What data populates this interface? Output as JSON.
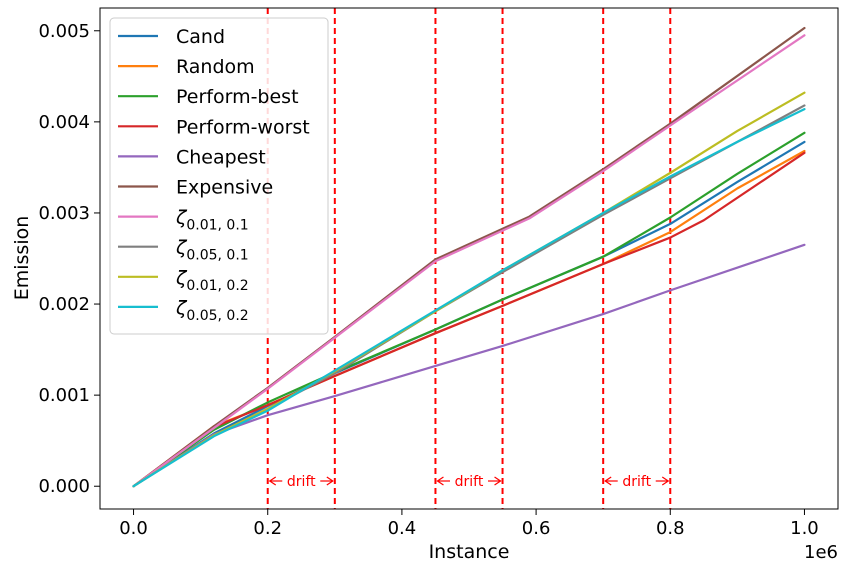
{
  "chart_data": {
    "type": "line",
    "title": "",
    "xlabel": "Instance",
    "ylabel": "Emission",
    "x_offset_label": "1e6",
    "xlim": [
      -0.05,
      1.05
    ],
    "ylim": [
      -0.00025,
      0.00525
    ],
    "xticks": [
      0.0,
      0.2,
      0.4,
      0.6,
      0.8,
      1.0
    ],
    "xtick_labels": [
      "0.0",
      "0.2",
      "0.4",
      "0.6",
      "0.8",
      "1.0"
    ],
    "yticks": [
      0.0,
      0.001,
      0.002,
      0.003,
      0.004,
      0.005
    ],
    "ytick_labels": [
      "0.000",
      "0.001",
      "0.002",
      "0.003",
      "0.004",
      "0.005"
    ],
    "grid": false,
    "legend_position": "top-left",
    "drift_lines": [
      0.2,
      0.3,
      0.45,
      0.55,
      0.7,
      0.8
    ],
    "drift_regions": [
      {
        "start": 0.2,
        "end": 0.3,
        "label": "drift"
      },
      {
        "start": 0.45,
        "end": 0.55,
        "label": "drift"
      },
      {
        "start": 0.7,
        "end": 0.8,
        "label": "drift"
      }
    ],
    "drift_color": "#ff0000",
    "series": [
      {
        "name": "Cand",
        "base": "Cand",
        "sub": "",
        "color": "#1f77b4",
        "x": [
          0,
          0.12,
          0.2,
          0.3,
          0.45,
          0.55,
          0.7,
          0.8,
          0.9,
          1.0
        ],
        "y": [
          0,
          0.00058,
          0.00088,
          0.00124,
          0.00172,
          0.00205,
          0.00252,
          0.00288,
          0.00334,
          0.00378
        ]
      },
      {
        "name": "Random",
        "base": "Random",
        "sub": "",
        "color": "#ff7f0e",
        "x": [
          0,
          0.12,
          0.2,
          0.3,
          0.45,
          0.55,
          0.7,
          0.8,
          0.9,
          1.0
        ],
        "y": [
          0,
          0.00066,
          0.00089,
          0.00121,
          0.00168,
          0.00198,
          0.00244,
          0.00279,
          0.00327,
          0.00368
        ]
      },
      {
        "name": "Perform-best",
        "base": "Perform-best",
        "sub": "",
        "color": "#2ca02c",
        "x": [
          0,
          0.12,
          0.2,
          0.3,
          0.45,
          0.55,
          0.7,
          0.8,
          0.9,
          1.0
        ],
        "y": [
          0,
          0.00062,
          0.00092,
          0.00125,
          0.00172,
          0.00205,
          0.00252,
          0.00295,
          0.00343,
          0.00388
        ]
      },
      {
        "name": "Perform-worst",
        "base": "Perform-worst",
        "sub": "",
        "color": "#d62728",
        "x": [
          0,
          0.12,
          0.2,
          0.3,
          0.45,
          0.55,
          0.7,
          0.8,
          0.85,
          1.0
        ],
        "y": [
          0,
          0.00065,
          0.00089,
          0.00121,
          0.00168,
          0.00198,
          0.00244,
          0.00273,
          0.00292,
          0.00366
        ]
      },
      {
        "name": "Cheapest",
        "base": "Cheapest",
        "sub": "",
        "color": "#9467bd",
        "x": [
          0,
          0.12,
          0.2,
          0.3,
          0.45,
          0.55,
          0.7,
          0.8,
          1.0
        ],
        "y": [
          0,
          0.00057,
          0.00078,
          0.00099,
          0.00132,
          0.00154,
          0.00189,
          0.00215,
          0.00265
        ]
      },
      {
        "name": "Expensive",
        "base": "Expensive",
        "sub": "",
        "color": "#8c564b",
        "x": [
          0,
          0.12,
          0.2,
          0.3,
          0.45,
          0.59,
          0.7,
          0.8,
          1.0
        ],
        "y": [
          0,
          0.00066,
          0.00108,
          0.00164,
          0.00249,
          0.00296,
          0.00348,
          0.00398,
          0.00503
        ]
      },
      {
        "name": "ζ0.01, 0.1",
        "base": "ζ",
        "sub": "0.01, 0.1",
        "color": "#e377c2",
        "x": [
          0,
          0.12,
          0.2,
          0.3,
          0.45,
          0.59,
          0.7,
          0.8,
          1.0
        ],
        "y": [
          0,
          0.00064,
          0.00107,
          0.00163,
          0.00247,
          0.00294,
          0.00346,
          0.00396,
          0.00495
        ]
      },
      {
        "name": "ζ0.05, 0.1",
        "base": "ζ",
        "sub": "0.05, 0.1",
        "color": "#7f7f7f",
        "x": [
          0,
          0.12,
          0.2,
          0.3,
          0.45,
          0.55,
          0.7,
          0.8,
          0.9,
          1.0
        ],
        "y": [
          0,
          0.00056,
          0.00085,
          0.00124,
          0.00192,
          0.00235,
          0.00298,
          0.00338,
          0.00378,
          0.00418
        ]
      },
      {
        "name": "ζ0.01, 0.2",
        "base": "ζ",
        "sub": "0.01, 0.2",
        "color": "#bcbd22",
        "x": [
          0,
          0.12,
          0.2,
          0.3,
          0.45,
          0.55,
          0.7,
          0.8,
          0.9,
          1.0
        ],
        "y": [
          0,
          0.00056,
          0.00085,
          0.00126,
          0.00192,
          0.00237,
          0.003,
          0.00344,
          0.0039,
          0.00432
        ]
      },
      {
        "name": "ζ0.05, 0.2",
        "base": "ζ",
        "sub": "0.05, 0.2",
        "color": "#17becf",
        "x": [
          0,
          0.12,
          0.2,
          0.3,
          0.45,
          0.55,
          0.7,
          0.8,
          0.9,
          1.0
        ],
        "y": [
          0,
          0.00055,
          0.00083,
          0.00127,
          0.00193,
          0.00237,
          0.003,
          0.0034,
          0.00378,
          0.00414
        ]
      }
    ]
  }
}
